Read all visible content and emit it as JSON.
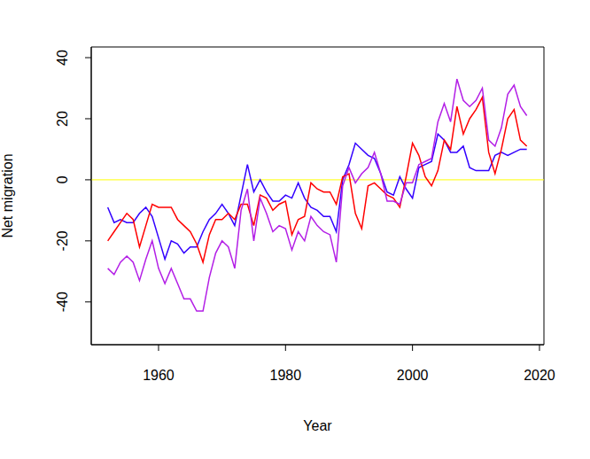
{
  "chart_data": {
    "type": "line",
    "x_label": "Year",
    "y_label": "Net migration",
    "x": [
      1952,
      1953,
      1954,
      1955,
      1956,
      1957,
      1958,
      1959,
      1960,
      1961,
      1962,
      1963,
      1964,
      1965,
      1966,
      1967,
      1968,
      1969,
      1970,
      1971,
      1972,
      1973,
      1974,
      1975,
      1976,
      1977,
      1978,
      1979,
      1980,
      1981,
      1982,
      1983,
      1984,
      1985,
      1986,
      1987,
      1988,
      1989,
      1990,
      1991,
      1992,
      1993,
      1994,
      1995,
      1996,
      1997,
      1998,
      1999,
      2000,
      2001,
      2002,
      2003,
      2004,
      2005,
      2006,
      2007,
      2008,
      2009,
      2010,
      2011,
      2012,
      2013,
      2014,
      2015,
      2016,
      2017,
      2018
    ],
    "series": [
      {
        "color": "#3300ff",
        "values": [
          -9,
          -14,
          -13,
          -14,
          -14,
          -11,
          -9,
          -12,
          -19,
          -26,
          -20,
          -21,
          -24,
          -22,
          -22,
          -17,
          -13,
          -11,
          -8,
          -11,
          -15,
          -5,
          5,
          -4,
          0,
          -4,
          -7,
          -7,
          -5,
          -6,
          -1,
          -6,
          -9,
          -10,
          -12,
          -12,
          -17,
          0,
          5,
          12,
          10,
          8,
          7,
          2,
          -4,
          -5,
          1,
          -3,
          -6,
          4,
          5,
          6,
          15,
          13,
          9,
          9,
          11,
          4,
          3,
          3,
          3,
          8,
          9,
          8,
          9,
          10,
          10
        ]
      },
      {
        "color": "#ff0000",
        "values": [
          -20,
          -17,
          -14,
          -11,
          -13,
          -22,
          -15,
          -8,
          -9,
          -9,
          -9,
          -13,
          -15,
          -17,
          -21,
          -27,
          -18,
          -13,
          -13,
          -11,
          -13,
          -8,
          -8,
          -15,
          -5,
          -6,
          -10,
          -8,
          -7,
          -18,
          -13,
          -12,
          -1,
          -3,
          -4,
          -4,
          -8,
          1,
          2,
          -11,
          -16,
          -2,
          -1,
          -3,
          -5,
          -6,
          -9,
          1,
          12,
          8,
          1,
          -2,
          3,
          13,
          10,
          24,
          15,
          20,
          23,
          27,
          9,
          2,
          10,
          20,
          23,
          13,
          11
        ]
      },
      {
        "color": "#b31fe6",
        "values": [
          -29,
          -31,
          -27,
          -25,
          -27,
          -33,
          -26,
          -20,
          -29,
          -34,
          -29,
          -34,
          -39,
          -39,
          -43,
          -43,
          -32,
          -24,
          -20,
          -22,
          -29,
          -10,
          -3,
          -20,
          -6,
          -11,
          -17,
          -15,
          -16,
          -23,
          -17,
          -20,
          -12,
          -15,
          -17,
          -18,
          -27,
          -2,
          4,
          -1,
          2,
          4,
          9,
          2,
          -7,
          -7,
          -8,
          -1,
          -1,
          5,
          6,
          7,
          19,
          25,
          19,
          33,
          26,
          24,
          26,
          30,
          13,
          11,
          17,
          28,
          31,
          24,
          21
        ]
      }
    ],
    "reference_lines": [
      {
        "y": 0,
        "color": "#ffff00"
      }
    ],
    "xlim": [
      1949.4,
      2020.7
    ],
    "xticks": [
      1960,
      1980,
      2000,
      2020
    ],
    "ylim": [
      -54,
      43.5
    ],
    "yticks": [
      -40,
      -20,
      0,
      20,
      40
    ]
  }
}
